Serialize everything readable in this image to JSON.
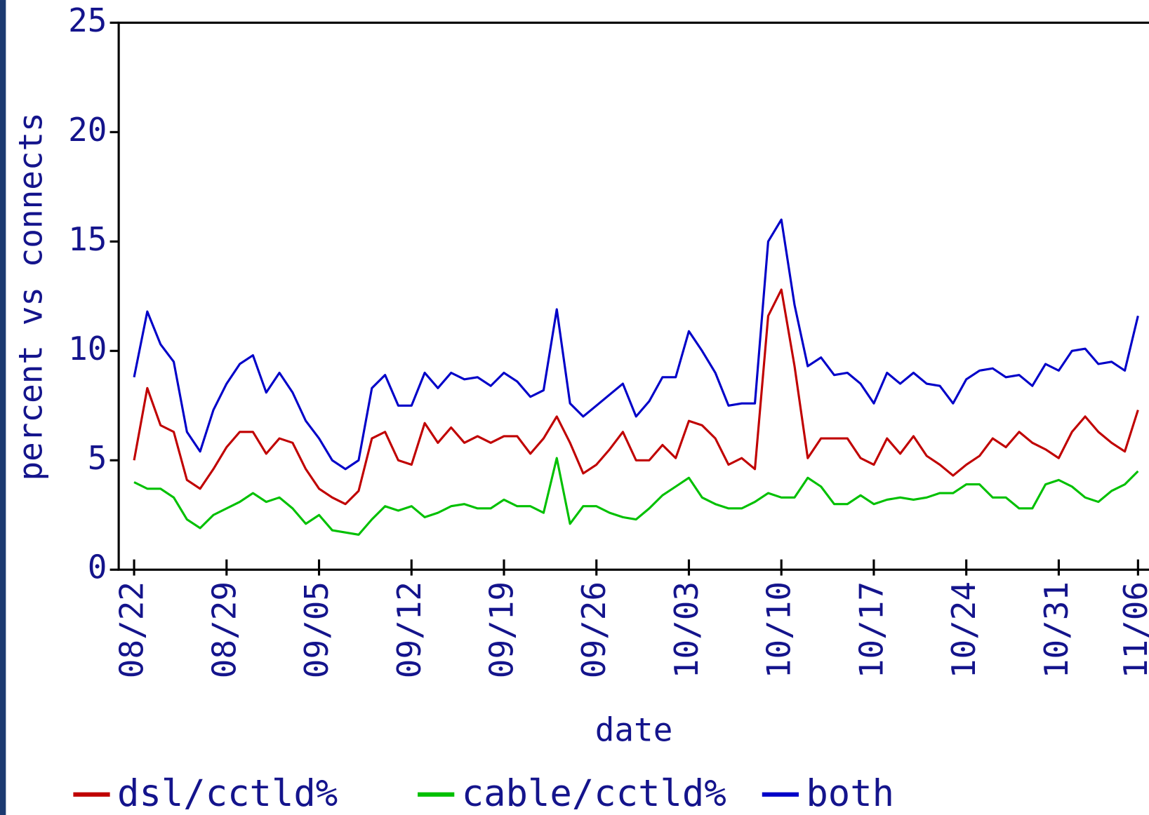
{
  "chart_data": {
    "type": "line",
    "x_label": "date",
    "y_label": "percent vs connects",
    "categories": [
      "08/22",
      null,
      null,
      null,
      null,
      null,
      null,
      "08/29",
      null,
      null,
      null,
      null,
      null,
      null,
      "09/05",
      null,
      null,
      null,
      null,
      null,
      null,
      "09/12",
      null,
      null,
      null,
      null,
      null,
      null,
      "09/19",
      null,
      null,
      null,
      null,
      null,
      null,
      "09/26",
      null,
      null,
      null,
      null,
      null,
      null,
      "10/03",
      null,
      null,
      null,
      null,
      null,
      null,
      "10/10",
      null,
      null,
      null,
      null,
      null,
      null,
      "10/17",
      null,
      null,
      null,
      null,
      null,
      null,
      "10/24",
      null,
      null,
      null,
      null,
      null,
      null,
      "10/31",
      null,
      null,
      null,
      null,
      null,
      "11/06"
    ],
    "series": [
      {
        "name": "dsl/cctld%",
        "color": "#c00000",
        "values": [
          5.0,
          8.3,
          6.6,
          6.3,
          4.1,
          3.7,
          4.6,
          5.6,
          6.3,
          6.3,
          5.3,
          6.0,
          5.8,
          4.6,
          3.7,
          3.3,
          3.0,
          3.6,
          6.0,
          6.3,
          5.0,
          4.8,
          6.7,
          5.8,
          6.5,
          5.8,
          6.1,
          5.8,
          6.1,
          6.1,
          5.3,
          6.0,
          7.0,
          5.8,
          4.4,
          4.8,
          5.5,
          6.3,
          5.0,
          5.0,
          5.7,
          5.1,
          6.8,
          6.6,
          6.0,
          4.8,
          5.1,
          4.6,
          11.6,
          12.8,
          9.3,
          5.1,
          6.0,
          6.0,
          6.0,
          5.1,
          4.8,
          6.0,
          5.3,
          6.1,
          5.2,
          4.8,
          4.3,
          4.8,
          5.2,
          6.0,
          5.6,
          6.3,
          5.8,
          5.5,
          5.1,
          6.3,
          7.0,
          6.3,
          5.8,
          5.4,
          7.3
        ]
      },
      {
        "name": "cable/cctld%",
        "color": "#00c000",
        "values": [
          4.0,
          3.7,
          3.7,
          3.3,
          2.3,
          1.9,
          2.5,
          2.8,
          3.1,
          3.5,
          3.1,
          3.3,
          2.8,
          2.1,
          2.5,
          1.8,
          1.7,
          1.6,
          2.3,
          2.9,
          2.7,
          2.9,
          2.4,
          2.6,
          2.9,
          3.0,
          2.8,
          2.8,
          3.2,
          2.9,
          2.9,
          2.6,
          5.1,
          2.1,
          2.9,
          2.9,
          2.6,
          2.4,
          2.3,
          2.8,
          3.4,
          3.8,
          4.2,
          3.3,
          3.0,
          2.8,
          2.8,
          3.1,
          3.5,
          3.3,
          3.3,
          4.2,
          3.8,
          3.0,
          3.0,
          3.4,
          3.0,
          3.2,
          3.3,
          3.2,
          3.3,
          3.5,
          3.5,
          3.9,
          3.9,
          3.3,
          3.3,
          2.8,
          2.8,
          3.9,
          4.1,
          3.8,
          3.3,
          3.1,
          3.6,
          3.9,
          4.5
        ]
      },
      {
        "name": "both",
        "color": "#0000c8",
        "values": [
          8.8,
          11.8,
          10.3,
          9.5,
          6.3,
          5.4,
          7.3,
          8.5,
          9.4,
          9.8,
          8.1,
          9.0,
          8.1,
          6.8,
          6.0,
          5.0,
          4.6,
          5.0,
          8.3,
          8.9,
          7.5,
          7.5,
          9.0,
          8.3,
          9.0,
          8.7,
          8.8,
          8.4,
          9.0,
          8.6,
          7.9,
          8.2,
          11.9,
          7.6,
          7.0,
          7.5,
          8.0,
          8.5,
          7.0,
          7.7,
          8.8,
          8.8,
          10.9,
          10.0,
          9.0,
          7.5,
          7.6,
          7.6,
          15.0,
          16.0,
          12.1,
          9.3,
          9.7,
          8.9,
          9.0,
          8.5,
          7.6,
          9.0,
          8.5,
          9.0,
          8.5,
          8.4,
          7.6,
          8.7,
          9.1,
          9.2,
          8.8,
          8.9,
          8.4,
          9.4,
          9.1,
          10.0,
          10.1,
          9.4,
          9.5,
          9.1,
          11.6
        ]
      }
    ],
    "ylim": [
      0,
      25
    ],
    "yticks": [
      0,
      5,
      10,
      15,
      20,
      25
    ],
    "grid": false,
    "legend": "bottom"
  }
}
